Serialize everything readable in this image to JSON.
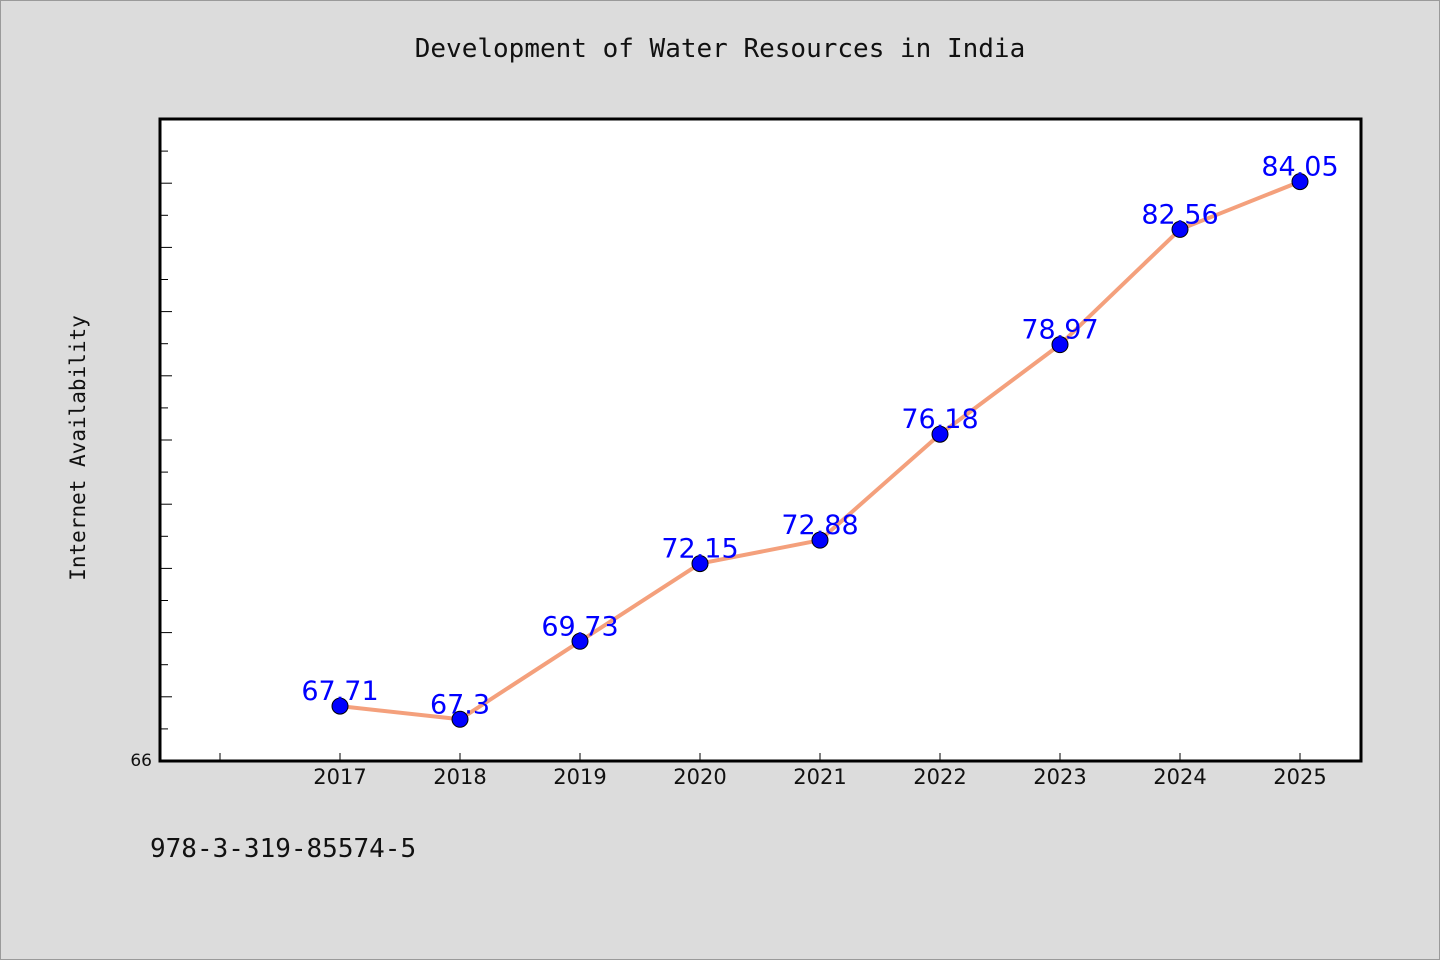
{
  "chart_data": {
    "type": "line",
    "title": "Development of Water Resources in India",
    "xlabel": "",
    "ylabel": "Internet Availability",
    "categories": [
      "2017",
      "2018",
      "2019",
      "2020",
      "2021",
      "2022",
      "2023",
      "2024",
      "2025"
    ],
    "values": [
      67.71,
      67.3,
      69.73,
      72.15,
      72.88,
      76.18,
      78.97,
      82.56,
      84.05
    ],
    "data_labels": [
      "67.71",
      "67.3",
      "69.73",
      "72.15",
      "72.88",
      "76.18",
      "78.97",
      "82.56",
      "84.05"
    ],
    "ylim": [
      66,
      86
    ],
    "y_tick_labels": [
      "66"
    ],
    "grid": false,
    "legend": "none",
    "colors": {
      "line": "#f4a07c",
      "marker": "#0000ff",
      "data_label": "#0000ff",
      "plot_background": "#ffffff",
      "page_background": "#dcdcdc"
    }
  },
  "footer": {
    "code": "978-3-319-85574-5"
  }
}
